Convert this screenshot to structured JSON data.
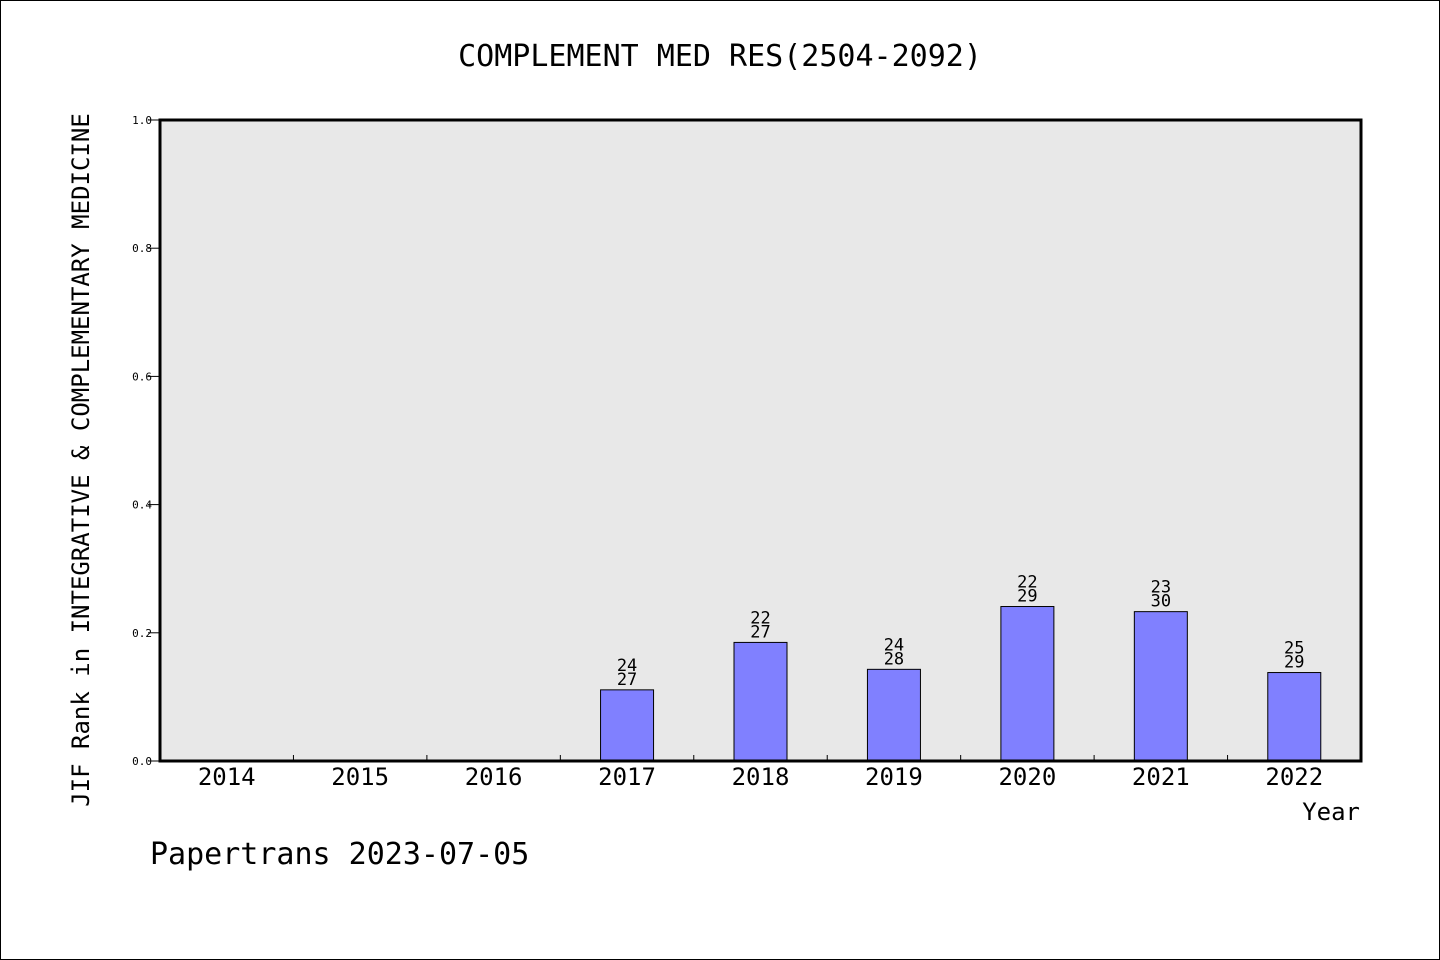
{
  "chart_data": {
    "type": "bar",
    "title": "COMPLEMENT MED RES(2504-2092)",
    "xlabel": "Year",
    "ylabel": "JIF Rank in INTEGRATIVE & COMPLEMENTARY MEDICINE",
    "ylim": [
      0,
      1.0
    ],
    "yticks": [
      "0.0",
      "0.2",
      "0.4",
      "0.6",
      "0.8",
      "1.0"
    ],
    "categories": [
      "2014",
      "2015",
      "2016",
      "2017",
      "2018",
      "2019",
      "2020",
      "2021",
      "2022"
    ],
    "values": [
      null,
      null,
      null,
      0.111,
      0.185,
      0.143,
      0.241,
      0.233,
      0.138
    ],
    "labels": [
      null,
      null,
      null,
      [
        "24",
        "27"
      ],
      [
        "22",
        "27"
      ],
      [
        "24",
        "28"
      ],
      [
        "22",
        "29"
      ],
      [
        "23",
        "30"
      ],
      [
        "25",
        "29"
      ]
    ],
    "bar_color": "#8080ff",
    "plot_background": "#e8e8e8",
    "grid": false,
    "legend": "none"
  },
  "footer": {
    "source": "Papertrans 2023-07-05"
  }
}
